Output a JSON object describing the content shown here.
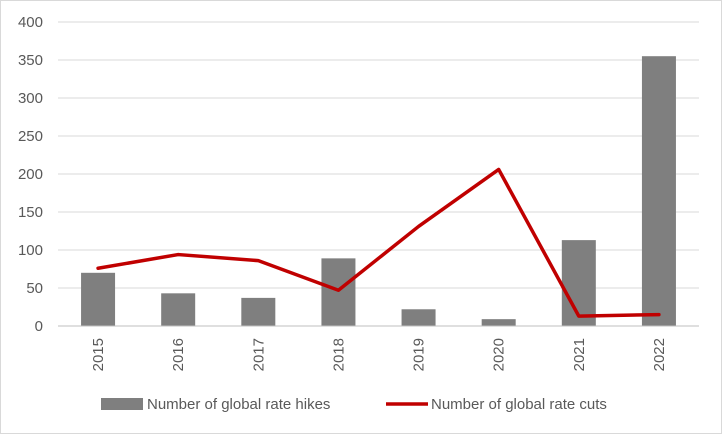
{
  "chart_data": {
    "type": "bar",
    "title": "",
    "xlabel": "",
    "ylabel": "",
    "categories": [
      "2015",
      "2016",
      "2017",
      "2018",
      "2019",
      "2020",
      "2021",
      "2022"
    ],
    "ylim": [
      0,
      400
    ],
    "yticks": [
      "0",
      "50",
      "100",
      "150",
      "200",
      "250",
      "300",
      "350",
      "400"
    ],
    "grid": true,
    "legend_position": "bottom",
    "series": [
      {
        "name": "Number of global rate hikes",
        "type": "bar",
        "color": "#7f7f7f",
        "values": [
          70,
          43,
          37,
          89,
          22,
          9,
          113,
          355
        ]
      },
      {
        "name": "Number of global rate cuts",
        "type": "line",
        "color": "#c00000",
        "values": [
          76,
          94,
          86,
          47,
          131,
          206,
          13,
          15
        ]
      }
    ]
  }
}
